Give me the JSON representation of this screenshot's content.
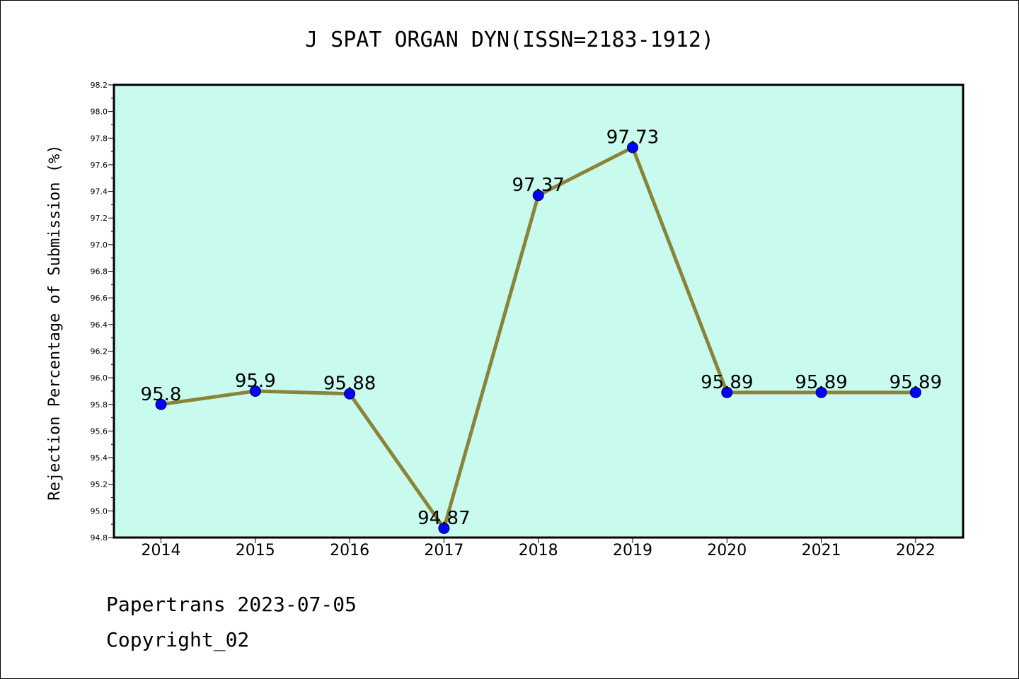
{
  "chart_data": {
    "type": "line",
    "title": "J SPAT ORGAN DYN(ISSN=2183-1912)",
    "ylabel": "Rejection Percentage of Submission (%)",
    "xlabel": "",
    "categories": [
      "2014",
      "2015",
      "2016",
      "2017",
      "2018",
      "2019",
      "2020",
      "2021",
      "2022"
    ],
    "series": [
      {
        "values": [
          95.8,
          95.9,
          95.88,
          94.87,
          97.37,
          97.73,
          95.89,
          95.89,
          95.89
        ],
        "labels": [
          "95.8",
          "95.9",
          "95.88",
          "94.87",
          "97.37",
          "97.73",
          "95.89",
          "95.89",
          "95.89"
        ]
      }
    ],
    "ylim": [
      94.8,
      98.2
    ],
    "ytick_step": 0.2,
    "grid": false,
    "plot_background": "#c8fbee",
    "line_color": "#8b8338",
    "marker_color": "#0000ff"
  },
  "footer": {
    "line1": "Papertrans 2023-07-05",
    "line2": "Copyright_02"
  }
}
